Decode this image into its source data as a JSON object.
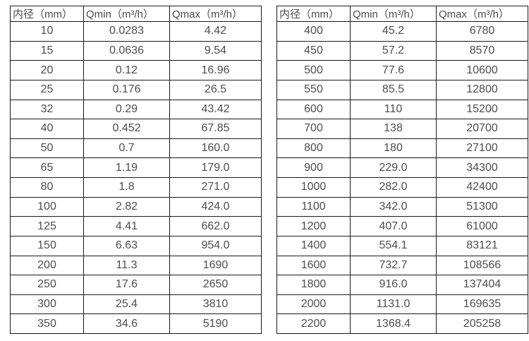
{
  "page": {
    "background_color": "#ffffff",
    "border_color": "#1a1a1a",
    "text_color": "#4d4d4d"
  },
  "tables": [
    {
      "name": "flow-table-small-diameters",
      "headers": [
        "内径（mm）",
        "Qmin（m³/h）",
        "Qmax（m³/h）"
      ],
      "rows": [
        [
          "10",
          "0.0283",
          "4.42"
        ],
        [
          "15",
          "0.0636",
          "9.54"
        ],
        [
          "20",
          "0.12",
          "16.96"
        ],
        [
          "25",
          "0.176",
          "26.5"
        ],
        [
          "32",
          "0.29",
          "43.42"
        ],
        [
          "40",
          "0.452",
          "67.85"
        ],
        [
          "50",
          "0.7",
          "160.0"
        ],
        [
          "65",
          "1.19",
          "179.0"
        ],
        [
          "80",
          "1.8",
          "271.0"
        ],
        [
          "100",
          "2.82",
          "424.0"
        ],
        [
          "125",
          "4.41",
          "662.0"
        ],
        [
          "150",
          "6.63",
          "954.0"
        ],
        [
          "200",
          "11.3",
          "1690"
        ],
        [
          "250",
          "17.6",
          "2650"
        ],
        [
          "300",
          "25.4",
          "3810"
        ],
        [
          "350",
          "34.6",
          "5190"
        ]
      ]
    },
    {
      "name": "flow-table-large-diameters",
      "headers": [
        "内径（mm）",
        "Qmin（m³/h）",
        "Qmax（m³/h）"
      ],
      "rows": [
        [
          "400",
          "45.2",
          "6780"
        ],
        [
          "450",
          "57.2",
          "8570"
        ],
        [
          "500",
          "77.6",
          "10600"
        ],
        [
          "550",
          "85.5",
          "12800"
        ],
        [
          "600",
          "110",
          "15200"
        ],
        [
          "700",
          "138",
          "20700"
        ],
        [
          "800",
          "180",
          "27100"
        ],
        [
          "900",
          "229.0",
          "34300"
        ],
        [
          "1000",
          "282.0",
          "42400"
        ],
        [
          "1100",
          "342.0",
          "51300"
        ],
        [
          "1200",
          "407.0",
          "61000"
        ],
        [
          "1400",
          "554.1",
          "83121"
        ],
        [
          "1600",
          "732.7",
          "108566"
        ],
        [
          "1800",
          "916.0",
          "137404"
        ],
        [
          "2000",
          "1131.0",
          "169635"
        ],
        [
          "2200",
          "1368.4",
          "205258"
        ]
      ]
    }
  ]
}
